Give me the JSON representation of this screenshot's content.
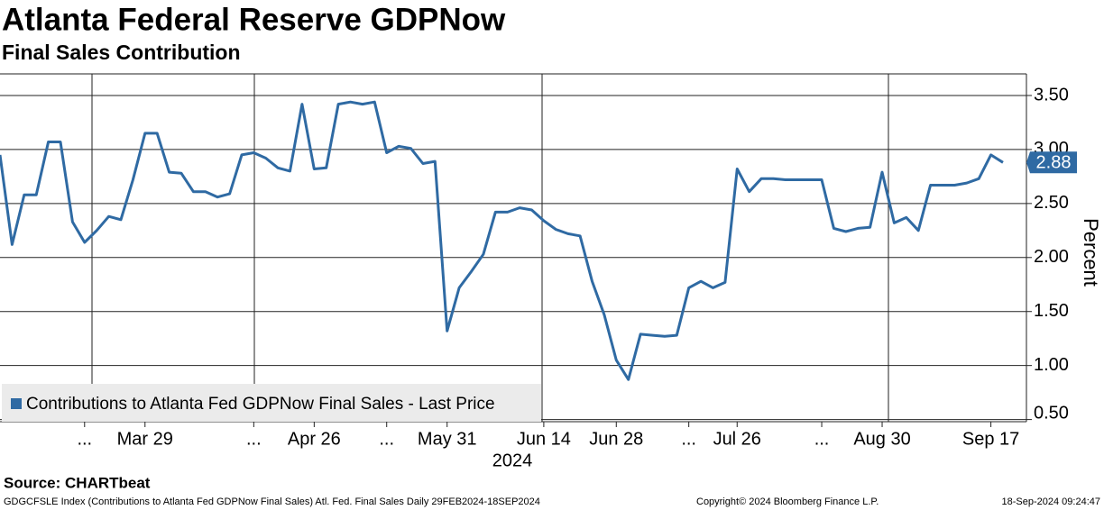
{
  "chart_data": {
    "type": "line",
    "title": "Atlanta Federal Reserve GDPNow",
    "subtitle": "Final Sales Contribution",
    "y_label": "Percent",
    "x_year_label": "2024",
    "categories": [
      null,
      null,
      null,
      null,
      null,
      null,
      null,
      "...",
      null,
      null,
      null,
      null,
      "Mar 29",
      null,
      null,
      null,
      null,
      null,
      null,
      null,
      null,
      "...",
      null,
      null,
      null,
      null,
      "Apr 26",
      null,
      null,
      null,
      null,
      null,
      "...",
      null,
      null,
      null,
      null,
      "May 31",
      null,
      null,
      null,
      null,
      null,
      null,
      null,
      "Jun 14",
      null,
      null,
      null,
      null,
      null,
      "Jun 28",
      null,
      null,
      null,
      null,
      null,
      "...",
      null,
      null,
      null,
      "Jul 26",
      null,
      null,
      null,
      null,
      null,
      null,
      "...",
      null,
      null,
      null,
      null,
      "Aug 30",
      null,
      null,
      null,
      null,
      null,
      null,
      null,
      null,
      "Sep 17",
      null
    ],
    "series": [
      {
        "name": "Contributions to Atlanta Fed GDPNow Final Sales - Last Price",
        "color": "#2f6aa3",
        "values": [
          2.95,
          2.12,
          2.58,
          2.58,
          3.07,
          3.07,
          2.33,
          2.14,
          2.25,
          2.38,
          2.35,
          2.72,
          3.15,
          3.15,
          2.79,
          2.78,
          2.61,
          2.61,
          2.56,
          2.59,
          2.95,
          2.97,
          2.92,
          2.83,
          2.8,
          3.42,
          2.82,
          2.83,
          3.42,
          3.44,
          3.42,
          3.44,
          2.97,
          3.03,
          3.01,
          2.87,
          2.89,
          1.32,
          1.72,
          1.87,
          2.03,
          2.42,
          2.42,
          2.46,
          2.44,
          2.34,
          2.26,
          2.22,
          2.2,
          1.78,
          1.47,
          1.05,
          0.87,
          1.29,
          1.28,
          1.27,
          1.28,
          1.72,
          1.78,
          1.72,
          1.77,
          2.82,
          2.61,
          2.73,
          2.73,
          2.72,
          2.72,
          2.72,
          2.72,
          2.27,
          2.24,
          2.27,
          2.28,
          2.79,
          2.32,
          2.37,
          2.25,
          2.67,
          2.67,
          2.67,
          2.69,
          2.73,
          2.95,
          2.88
        ]
      }
    ],
    "ylim": [
      0.48,
      3.7
    ],
    "yticks": [
      {
        "value": 0.5,
        "label": "0.50"
      },
      {
        "value": 1,
        "label": "1.00"
      },
      {
        "value": 1.5,
        "label": "1.50"
      },
      {
        "value": 2,
        "label": "2.00"
      },
      {
        "value": 2.5,
        "label": "2.50"
      },
      {
        "value": 3,
        "label": "3.00"
      },
      {
        "value": 3.5,
        "label": "3.50"
      }
    ],
    "grid": true,
    "legend": "bottom-left",
    "source": "Source: CHARTbeat",
    "footer_left": "GDGCFSLE Index (Contributions to Atlanta Fed GDPNow Final Sales) Atl. Fed. Final Sales  Daily 29FEB2024-18SEP2024",
    "footer_center": "Copyright© 2024 Bloomberg Finance L.P.",
    "footer_right": "18-Sep-2024 09:24:47"
  }
}
